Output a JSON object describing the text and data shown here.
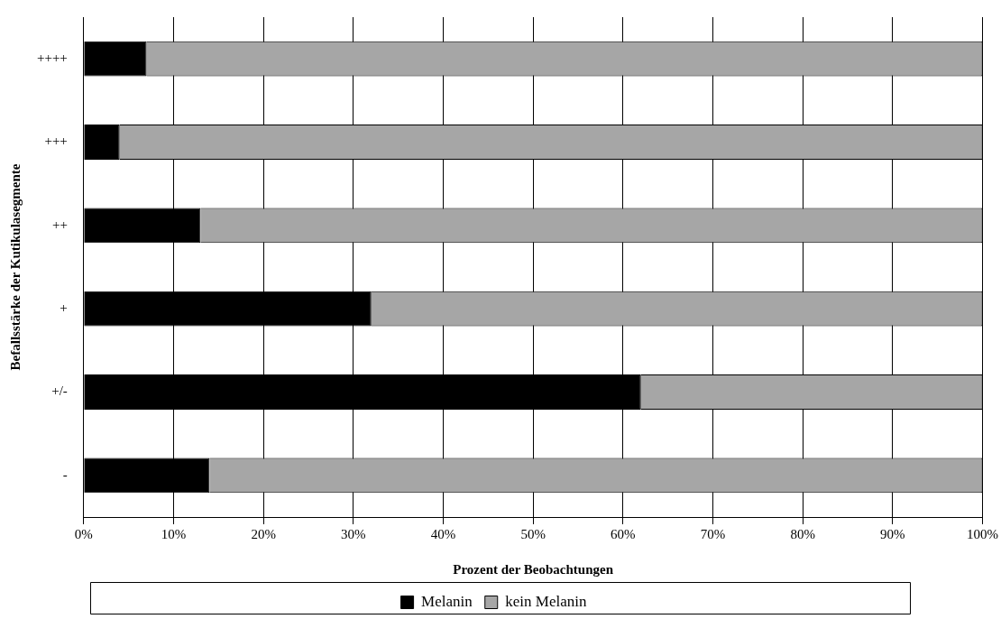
{
  "chart_data": {
    "type": "bar",
    "orientation": "horizontal",
    "stacked": true,
    "xlabel": "Prozent der Beobachtungen",
    "ylabel": "Befallsstärke der Kutikulasegmente",
    "categories": [
      "++++",
      "+++",
      "++",
      "+",
      "+/-",
      "-"
    ],
    "series": [
      {
        "name": "Melanin",
        "color": "#000000",
        "values": [
          7,
          4,
          13,
          32,
          62,
          14
        ]
      },
      {
        "name": "kein Melanin",
        "color": "#a6a6a6",
        "values": [
          93,
          96,
          87,
          68,
          38,
          86
        ]
      }
    ],
    "xlim": [
      0,
      100
    ],
    "xticks": [
      {
        "value": 0,
        "label": "0%"
      },
      {
        "value": 10,
        "label": "10%"
      },
      {
        "value": 20,
        "label": "20%"
      },
      {
        "value": 30,
        "label": "30%"
      },
      {
        "value": 40,
        "label": "40%"
      },
      {
        "value": 50,
        "label": "50%"
      },
      {
        "value": 60,
        "label": "60%"
      },
      {
        "value": 70,
        "label": "70%"
      },
      {
        "value": 80,
        "label": "80%"
      },
      {
        "value": 90,
        "label": "90%"
      },
      {
        "value": 100,
        "label": "100%"
      }
    ],
    "grid": "x",
    "legend": "bottom"
  }
}
